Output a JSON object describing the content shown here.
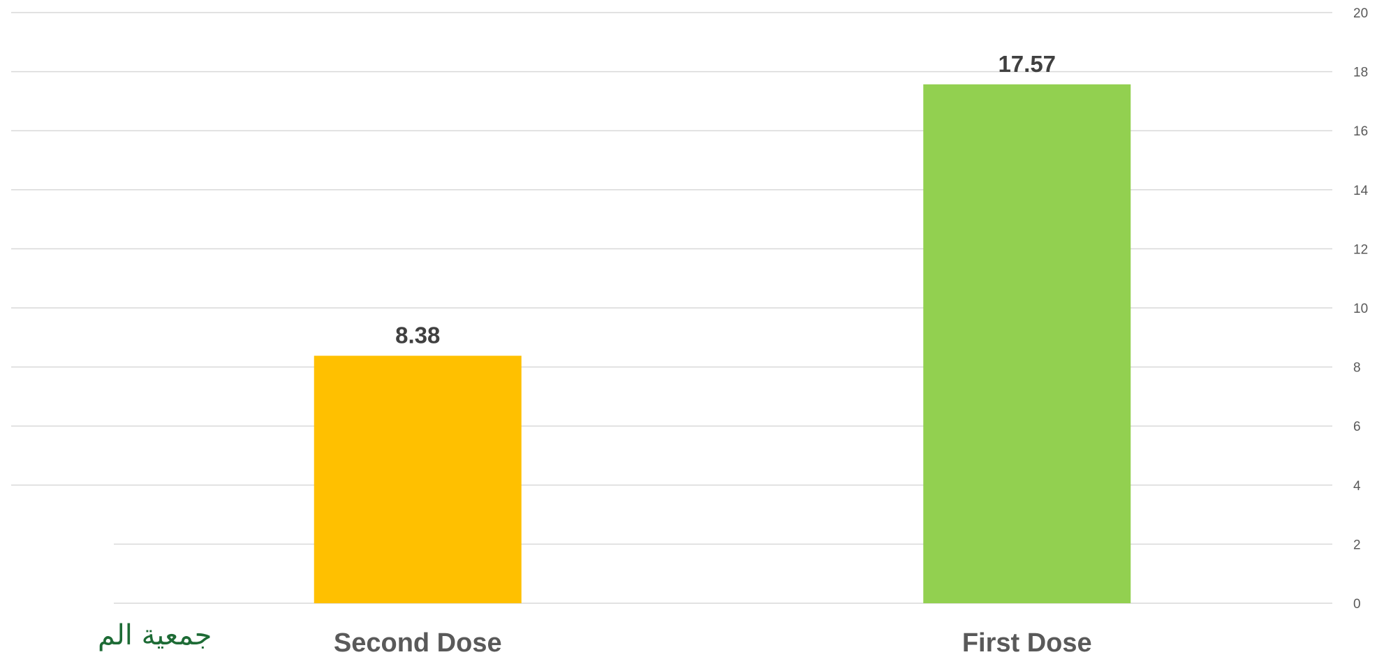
{
  "chart_data": {
    "type": "bar",
    "categories": [
      "Second Dose",
      "First Dose"
    ],
    "values": [
      8.38,
      17.57
    ],
    "value_labels": [
      "8.38",
      "17.57"
    ],
    "colors": [
      "#FFC000",
      "#92D050"
    ],
    "ylim": [
      0,
      20
    ],
    "yticks": [
      0,
      2,
      4,
      6,
      8,
      10,
      12,
      14,
      16,
      18,
      20
    ],
    "y_axis_side": "right",
    "grid": true,
    "title": "",
    "xlabel": "",
    "ylabel": ""
  },
  "logo": {
    "text": "جمعية الم",
    "color": "#1d6b35"
  }
}
